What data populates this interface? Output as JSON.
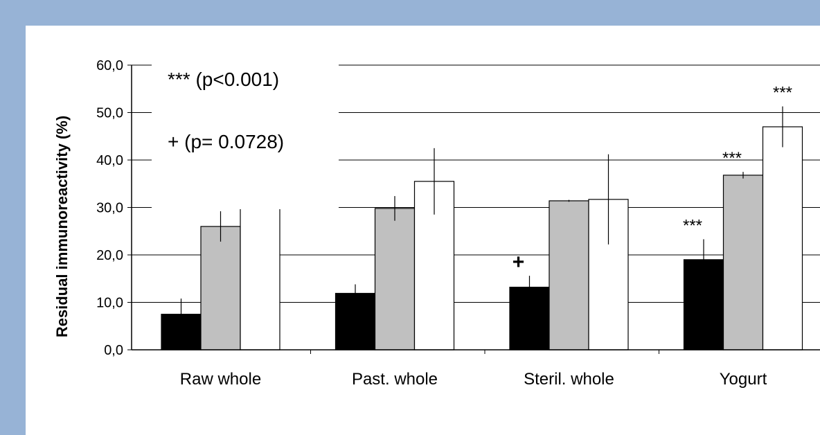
{
  "chart_data": {
    "type": "bar",
    "title": "",
    "xlabel": "",
    "ylabel": "Residual immunoreactivity (%)",
    "ylim": [
      0,
      60
    ],
    "yticks": [
      "0,0",
      "10,0",
      "20,0",
      "30,0",
      "40,0",
      "50,0",
      "60,0"
    ],
    "grid": true,
    "categories": [
      "Raw whole",
      "Past. whole",
      "Steril. whole",
      "Yogurt"
    ],
    "series": [
      {
        "color": "#000000",
        "values": [
          7.5,
          11.9,
          13.2,
          19.0
        ],
        "errors": [
          3.3,
          1.9,
          2.4,
          4.3
        ]
      },
      {
        "color": "#c0c0c0",
        "values": [
          26.0,
          29.8,
          31.4,
          36.8
        ],
        "errors": [
          3.2,
          2.6,
          0.2,
          0.7
        ]
      },
      {
        "color": "#ffffff",
        "values": [
          35.0,
          35.5,
          31.7,
          47.0
        ],
        "errors": [
          4.0,
          7.0,
          9.5,
          4.3
        ]
      }
    ],
    "legend_texts": [
      "*** (p<0.001)",
      "+ (p= 0.0728)"
    ],
    "annotations": [
      {
        "text": "***",
        "category": 3,
        "series": 0
      },
      {
        "text": "***",
        "category": 3,
        "series": 1
      },
      {
        "text": "***",
        "category": 3,
        "series": 2
      },
      {
        "text": "+",
        "category": 2,
        "series": 0
      }
    ]
  }
}
